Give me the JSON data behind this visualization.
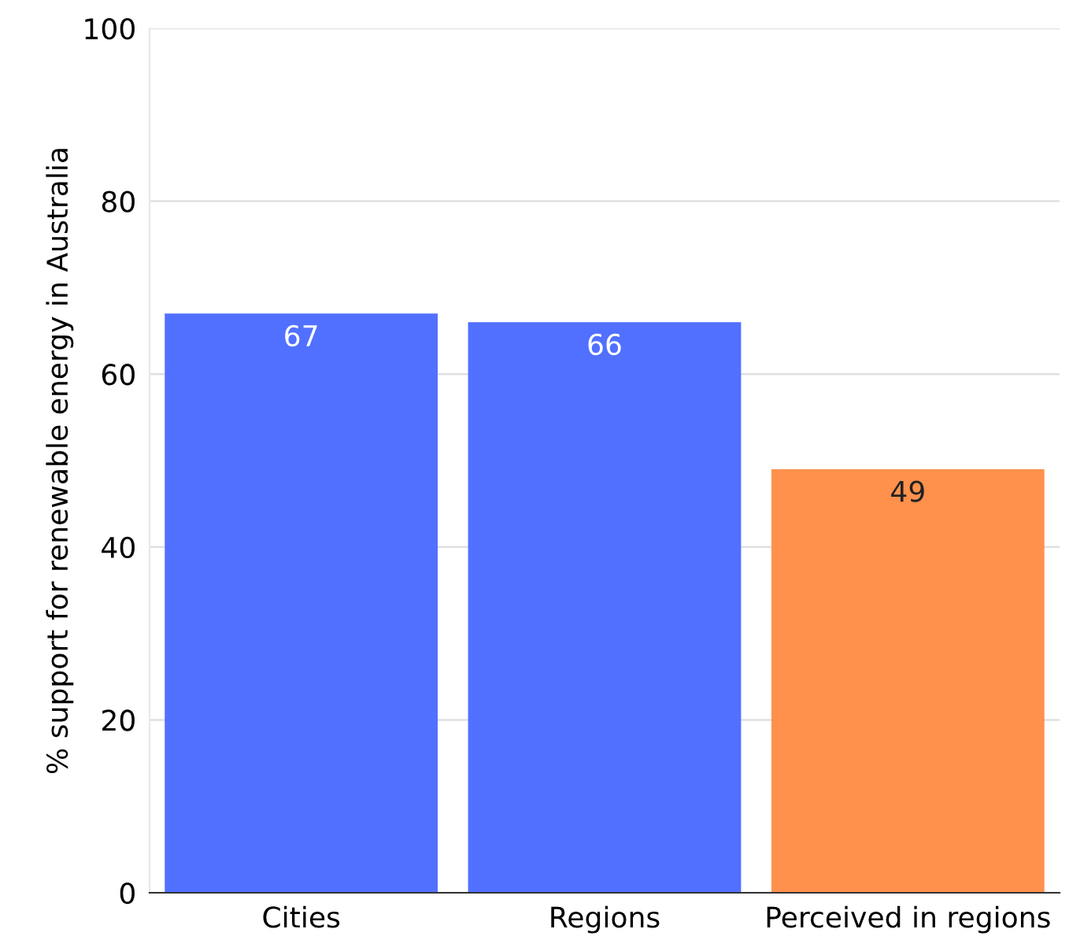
{
  "chart_data": {
    "type": "bar",
    "ylabel": "% support for renewable energy in Australia",
    "categories": [
      "Cities",
      "Regions",
      "Perceived in regions"
    ],
    "values": [
      67,
      66,
      49
    ],
    "colors": [
      "#5170ff",
      "#5170ff",
      "#ff914d"
    ],
    "ylim": [
      0,
      100
    ],
    "yticks": [
      0,
      20,
      40,
      60,
      80,
      100
    ],
    "grid": "y",
    "data_labels": true
  }
}
